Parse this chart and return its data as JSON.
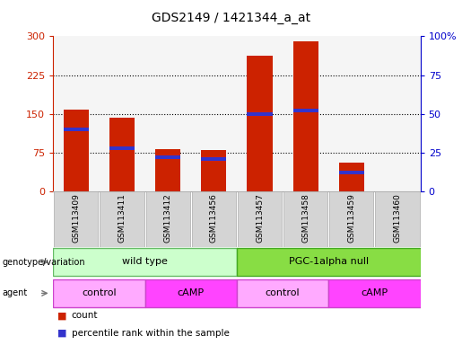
{
  "title": "GDS2149 / 1421344_a_at",
  "samples": [
    "GSM113409",
    "GSM113411",
    "GSM113412",
    "GSM113456",
    "GSM113457",
    "GSM113458",
    "GSM113459",
    "GSM113460"
  ],
  "counts": [
    158,
    142,
    82,
    80,
    263,
    290,
    55,
    0
  ],
  "percentile_ranks": [
    40,
    28,
    22,
    21,
    50,
    52,
    12,
    0
  ],
  "ylim_left": [
    0,
    300
  ],
  "ylim_right": [
    0,
    100
  ],
  "yticks_left": [
    0,
    75,
    150,
    225,
    300
  ],
  "yticks_right": [
    0,
    25,
    50,
    75,
    100
  ],
  "bar_color": "#cc2200",
  "marker_color": "#3333cc",
  "bar_width": 0.55,
  "genotype_groups": [
    {
      "label": "wild type",
      "start": 0,
      "end": 4,
      "color": "#ccffcc",
      "border_color": "#66bb66"
    },
    {
      "label": "PGC-1alpha null",
      "start": 4,
      "end": 8,
      "color": "#88dd44",
      "border_color": "#44aa22"
    }
  ],
  "agent_groups": [
    {
      "label": "control",
      "start": 0,
      "end": 2,
      "color": "#ffaaff",
      "border_color": "#cc44cc"
    },
    {
      "label": "cAMP",
      "start": 2,
      "end": 4,
      "color": "#ff44ff",
      "border_color": "#cc44cc"
    },
    {
      "label": "control",
      "start": 4,
      "end": 6,
      "color": "#ffaaff",
      "border_color": "#cc44cc"
    },
    {
      "label": "cAMP",
      "start": 6,
      "end": 8,
      "color": "#ff44ff",
      "border_color": "#cc44cc"
    }
  ],
  "legend_items": [
    {
      "label": "count",
      "color": "#cc2200"
    },
    {
      "label": "percentile rank within the sample",
      "color": "#3333cc"
    }
  ],
  "background_color": "#ffffff",
  "tick_color_left": "#cc2200",
  "tick_color_right": "#0000cc"
}
